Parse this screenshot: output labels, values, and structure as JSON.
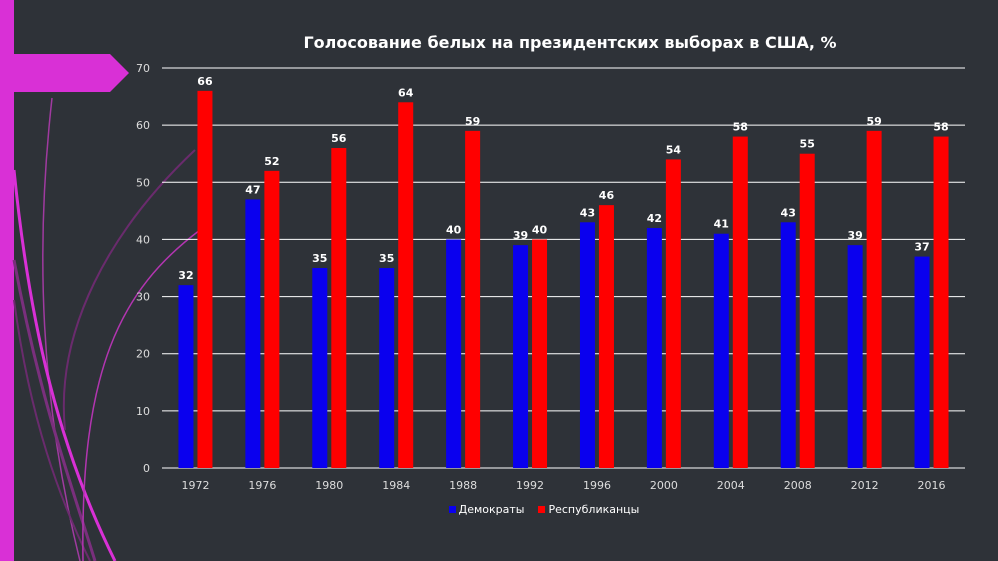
{
  "colors": {
    "background": "#2e3238",
    "accent": "#d930d6",
    "democrats": "#0a00ee",
    "republicans": "#ff0000",
    "grid": "#ffffff",
    "text": "#ffffff"
  },
  "chart_data": {
    "type": "bar",
    "title": "Голосование  белых на президентских  выборах в США, %",
    "xlabel": "",
    "ylabel": "",
    "ylim": [
      0,
      70
    ],
    "yticks": [
      0,
      10,
      20,
      30,
      40,
      50,
      60,
      70
    ],
    "grid": true,
    "legend_position": "bottom",
    "categories": [
      "1972",
      "1976",
      "1980",
      "1984",
      "1988",
      "1992",
      "1996",
      "2000",
      "2004",
      "2008",
      "2012",
      "2016"
    ],
    "series": [
      {
        "name": "Демократы",
        "color": "#0a00ee",
        "values": [
          32,
          47,
          35,
          35,
          40,
          39,
          43,
          42,
          41,
          43,
          39,
          37
        ]
      },
      {
        "name": "Республиканцы",
        "color": "#ff0000",
        "values": [
          66,
          52,
          56,
          64,
          59,
          40,
          46,
          54,
          58,
          55,
          59,
          58
        ]
      }
    ]
  }
}
